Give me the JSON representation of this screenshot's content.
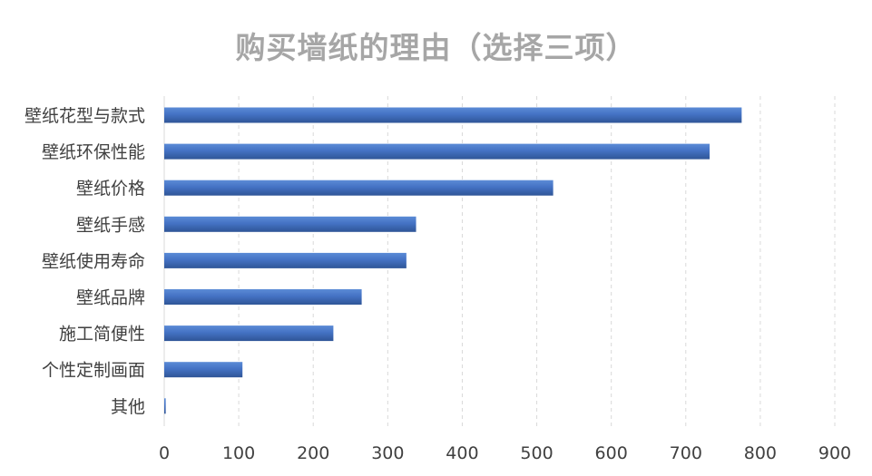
{
  "chart_data": {
    "type": "bar",
    "orientation": "horizontal",
    "title": "购买墙纸的理由（选择三项）",
    "xlabel": "",
    "ylabel": "",
    "categories": [
      "壁纸花型与款式",
      "壁纸环保性能",
      "壁纸价格",
      "壁纸手感",
      "壁纸使用寿命",
      "壁纸品牌",
      "施工简便性",
      "个性定制画面",
      "其他"
    ],
    "values": [
      775,
      732,
      522,
      338,
      325,
      265,
      227,
      105,
      2
    ],
    "xlim": [
      0,
      900
    ],
    "xticks": [
      "0",
      "100",
      "200",
      "300",
      "400",
      "500",
      "600",
      "700",
      "800",
      "900"
    ],
    "grid": "vertical-dashed",
    "legend": "none",
    "bar_color": "#4472c4",
    "bar_color_dark": "#2f5597",
    "grid_color": "#d9d9d9",
    "text_color": "#404040",
    "title_color": "#a6a6a6"
  }
}
